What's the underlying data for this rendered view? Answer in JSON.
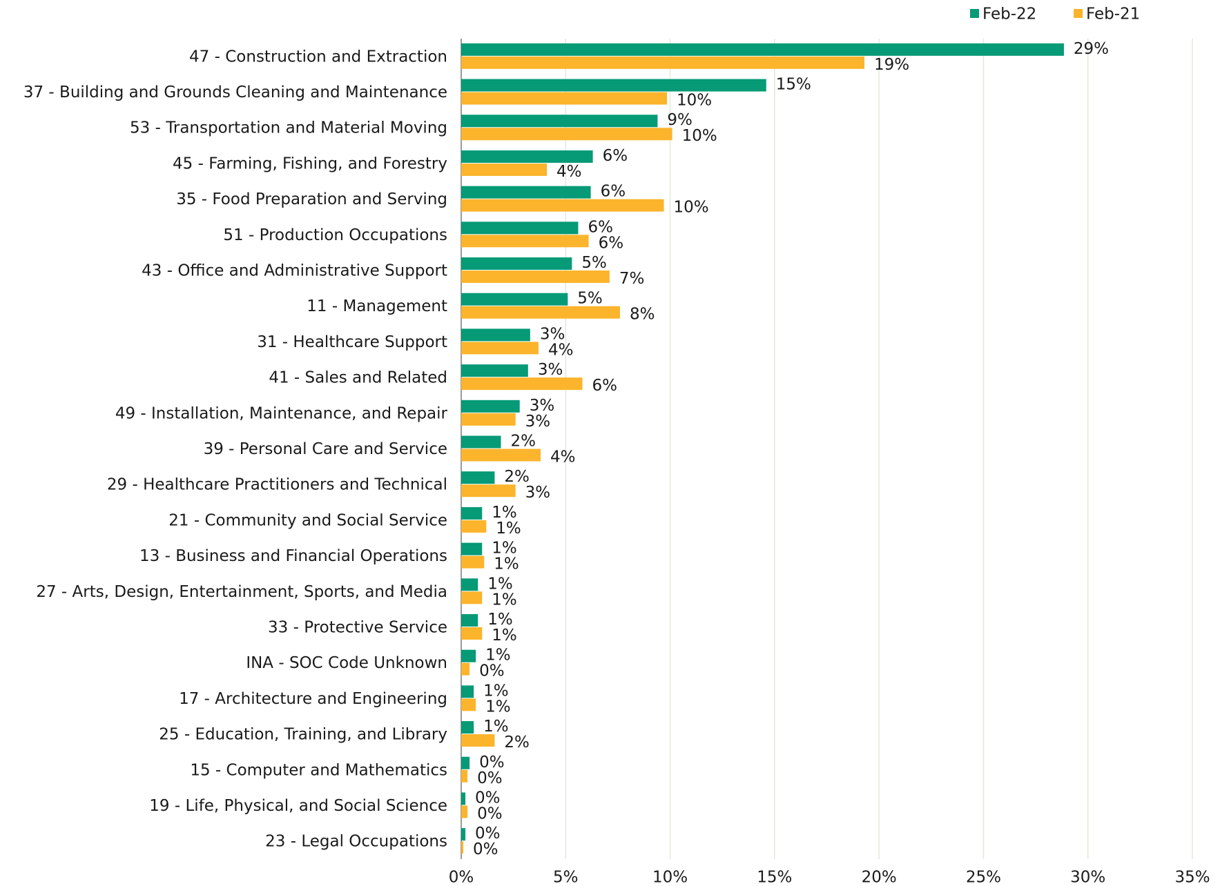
{
  "chart_data": {
    "type": "hbar",
    "categories": [
      "47 - Construction and Extraction",
      "37 - Building and Grounds Cleaning and Maintenance",
      "53 - Transportation and Material Moving",
      "45 - Farming, Fishing, and Forestry",
      "35 - Food Preparation and Serving",
      "51 - Production Occupations",
      "43 - Office and Administrative Support",
      "11 - Management",
      "31 - Healthcare Support",
      "41 - Sales and Related",
      "49 - Installation, Maintenance, and Repair",
      "39 - Personal Care and Service",
      "29 - Healthcare Practitioners and Technical",
      "21 - Community and Social Service",
      "13 - Business and Financial Operations",
      "27 - Arts, Design, Entertainment, Sports, and Media",
      "33 - Protective Service",
      "INA - SOC Code Unknown",
      "17 - Architecture and Engineering",
      "25 - Education, Training, and Library",
      "15 - Computer and Mathematics",
      "19 - Life, Physical, and Social Science",
      "23 - Legal Occupations"
    ],
    "series": [
      {
        "name": "Feb-22",
        "color": "#069a76",
        "values": [
          28.85,
          14.6,
          9.4,
          6.3,
          6.2,
          5.6,
          5.3,
          5.1,
          3.3,
          3.2,
          2.8,
          1.9,
          1.6,
          1.0,
          1.0,
          0.8,
          0.8,
          0.7,
          0.6,
          0.6,
          0.4,
          0.2,
          0.2
        ],
        "value_labels": [
          "29%",
          "15%",
          "9%",
          "6%",
          "6%",
          "6%",
          "5%",
          "5%",
          "3%",
          "3%",
          "3%",
          "2%",
          "2%",
          "1%",
          "1%",
          "1%",
          "1%",
          "1%",
          "1%",
          "1%",
          "0%",
          "0%",
          "0%"
        ]
      },
      {
        "name": "Feb-21",
        "color": "#fbb42c",
        "values": [
          19.3,
          9.85,
          10.1,
          4.1,
          9.7,
          6.1,
          7.1,
          7.6,
          3.7,
          5.8,
          2.6,
          3.8,
          2.6,
          1.2,
          1.1,
          1.0,
          1.0,
          0.4,
          0.7,
          1.6,
          0.3,
          0.3,
          0.1
        ],
        "value_labels": [
          "19%",
          "10%",
          "10%",
          "4%",
          "10%",
          "6%",
          "7%",
          "8%",
          "4%",
          "6%",
          "3%",
          "4%",
          "3%",
          "1%",
          "1%",
          "1%",
          "1%",
          "0%",
          "1%",
          "2%",
          "0%",
          "0%",
          "0%"
        ]
      }
    ],
    "xlim": [
      0,
      35
    ],
    "xticks": [
      {
        "value": 0,
        "label": "0%"
      },
      {
        "value": 5,
        "label": "5%"
      },
      {
        "value": 10,
        "label": "10%"
      },
      {
        "value": 15,
        "label": "15%"
      },
      {
        "value": 20,
        "label": "20%"
      },
      {
        "value": 25,
        "label": "25%"
      },
      {
        "value": 30,
        "label": "30%"
      },
      {
        "value": 35,
        "label": "35%"
      }
    ],
    "grid": true,
    "legend": "top-right"
  }
}
